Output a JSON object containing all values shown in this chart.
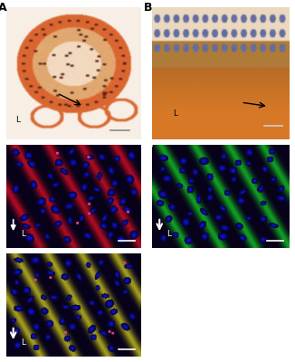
{
  "figure_width": 3.26,
  "figure_height": 4.0,
  "dpi": 100,
  "bg_color": "#ffffff",
  "panel_label_fontsize": 9,
  "panels_info": {
    "A": [
      0.02,
      0.615,
      0.455,
      0.365
    ],
    "B": [
      0.515,
      0.615,
      0.465,
      0.365
    ],
    "C": [
      0.02,
      0.315,
      0.455,
      0.285
    ],
    "D": [
      0.515,
      0.315,
      0.465,
      0.285
    ],
    "E": [
      0.02,
      0.015,
      0.455,
      0.285
    ]
  },
  "label_colors": {
    "A": "black",
    "B": "black",
    "C": "white",
    "D": "white",
    "E": "white"
  }
}
